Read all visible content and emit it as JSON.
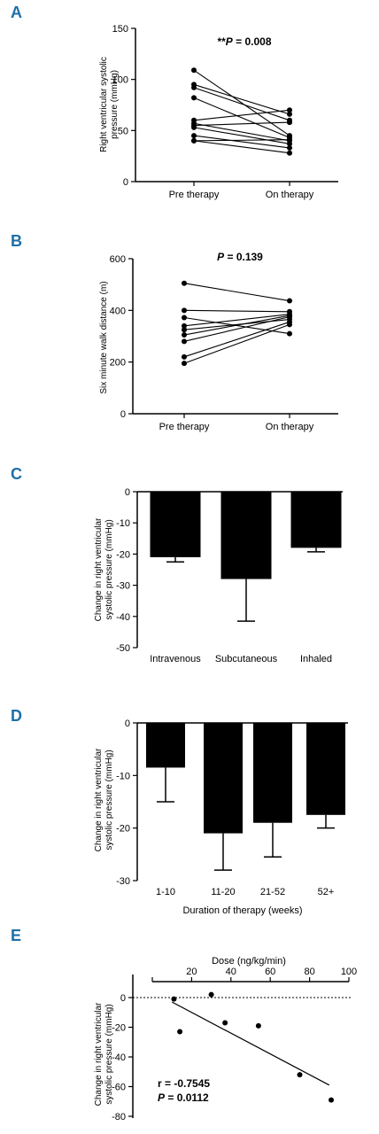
{
  "panels": {
    "A": "A",
    "B": "B",
    "C": "C",
    "D": "D",
    "E": "E"
  },
  "chart_data": [
    {
      "type": "line",
      "panel": "A",
      "categories": [
        "Pre therapy",
        "On therapy"
      ],
      "ylabel_lines": [
        "Right ventricular systolic",
        "pressure (mmHg)"
      ],
      "ylim": [
        0,
        150
      ],
      "yticks": [
        0,
        50,
        100,
        150
      ],
      "annotation": "**P = 0.008",
      "series": [
        {
          "values": [
            109,
            45
          ]
        },
        {
          "values": [
            95,
            66
          ]
        },
        {
          "values": [
            92,
            60
          ]
        },
        {
          "values": [
            82,
            43
          ]
        },
        {
          "values": [
            60,
            70
          ]
        },
        {
          "values": [
            57,
            40
          ]
        },
        {
          "values": [
            55,
            58
          ]
        },
        {
          "values": [
            53,
            37
          ]
        },
        {
          "values": [
            45,
            33
          ]
        },
        {
          "values": [
            40,
            28
          ]
        },
        {
          "values": [
            40,
            41
          ]
        }
      ]
    },
    {
      "type": "line",
      "panel": "B",
      "categories": [
        "Pre therapy",
        "On therapy"
      ],
      "ylabel_lines": [
        "Six minute walk distance (m)"
      ],
      "ylim": [
        0,
        600
      ],
      "yticks": [
        0,
        200,
        400,
        600
      ],
      "annotation": "P = 0.139",
      "series": [
        {
          "values": [
            505,
            437
          ]
        },
        {
          "values": [
            400,
            395
          ]
        },
        {
          "values": [
            372,
            310
          ]
        },
        {
          "values": [
            340,
            385
          ]
        },
        {
          "values": [
            325,
            365
          ]
        },
        {
          "values": [
            305,
            380
          ]
        },
        {
          "values": [
            280,
            375
          ]
        },
        {
          "values": [
            220,
            355
          ]
        },
        {
          "values": [
            195,
            345
          ]
        }
      ]
    },
    {
      "type": "bar",
      "panel": "C",
      "categories": [
        "Intravenous",
        "Subcutaneous",
        "Inhaled"
      ],
      "values": [
        -21,
        -28,
        -18
      ],
      "errors": [
        1.5,
        13.5,
        1.3
      ],
      "ylabel_lines": [
        "Change in right ventricular",
        "systolic pressure (mmHg)"
      ],
      "ylim": [
        -50,
        0
      ],
      "yticks": [
        0,
        -10,
        -20,
        -30,
        -40,
        -50
      ]
    },
    {
      "type": "bar",
      "panel": "D",
      "categories": [
        "1-10",
        "11-20",
        "21-52",
        "52+"
      ],
      "values": [
        -8.5,
        -21,
        -19,
        -17.5
      ],
      "errors": [
        6.5,
        7,
        6.5,
        2.5
      ],
      "xlabel": "Duration of therapy  (weeks)",
      "ylabel_lines": [
        "Change in right ventricular",
        "systolic pressure (mmHg)"
      ],
      "ylim": [
        -30,
        0
      ],
      "yticks": [
        0,
        -10,
        -20,
        -30
      ]
    },
    {
      "type": "scatter",
      "panel": "E",
      "xlabel": "Dose (ng/kg/min)",
      "xlim": [
        0,
        100
      ],
      "xticks": [
        20,
        40,
        60,
        80,
        100
      ],
      "ylim": [
        -80,
        10
      ],
      "yticks": [
        0,
        -20,
        -40,
        -60,
        -80
      ],
      "ylabel_lines": [
        "Change in right ventricular",
        "systolic pressure (mmHg)"
      ],
      "points": [
        {
          "x": 11,
          "y": -1
        },
        {
          "x": 14,
          "y": -23
        },
        {
          "x": 30,
          "y": 2
        },
        {
          "x": 37,
          "y": -17
        },
        {
          "x": 54,
          "y": -19
        },
        {
          "x": 75,
          "y": -52
        },
        {
          "x": 91,
          "y": -69
        }
      ],
      "fit_line": [
        {
          "x": 10,
          "y": -3
        },
        {
          "x": 90,
          "y": -59
        }
      ],
      "stat_lines": [
        "r = -0.7545",
        "P = 0.0112"
      ]
    }
  ]
}
